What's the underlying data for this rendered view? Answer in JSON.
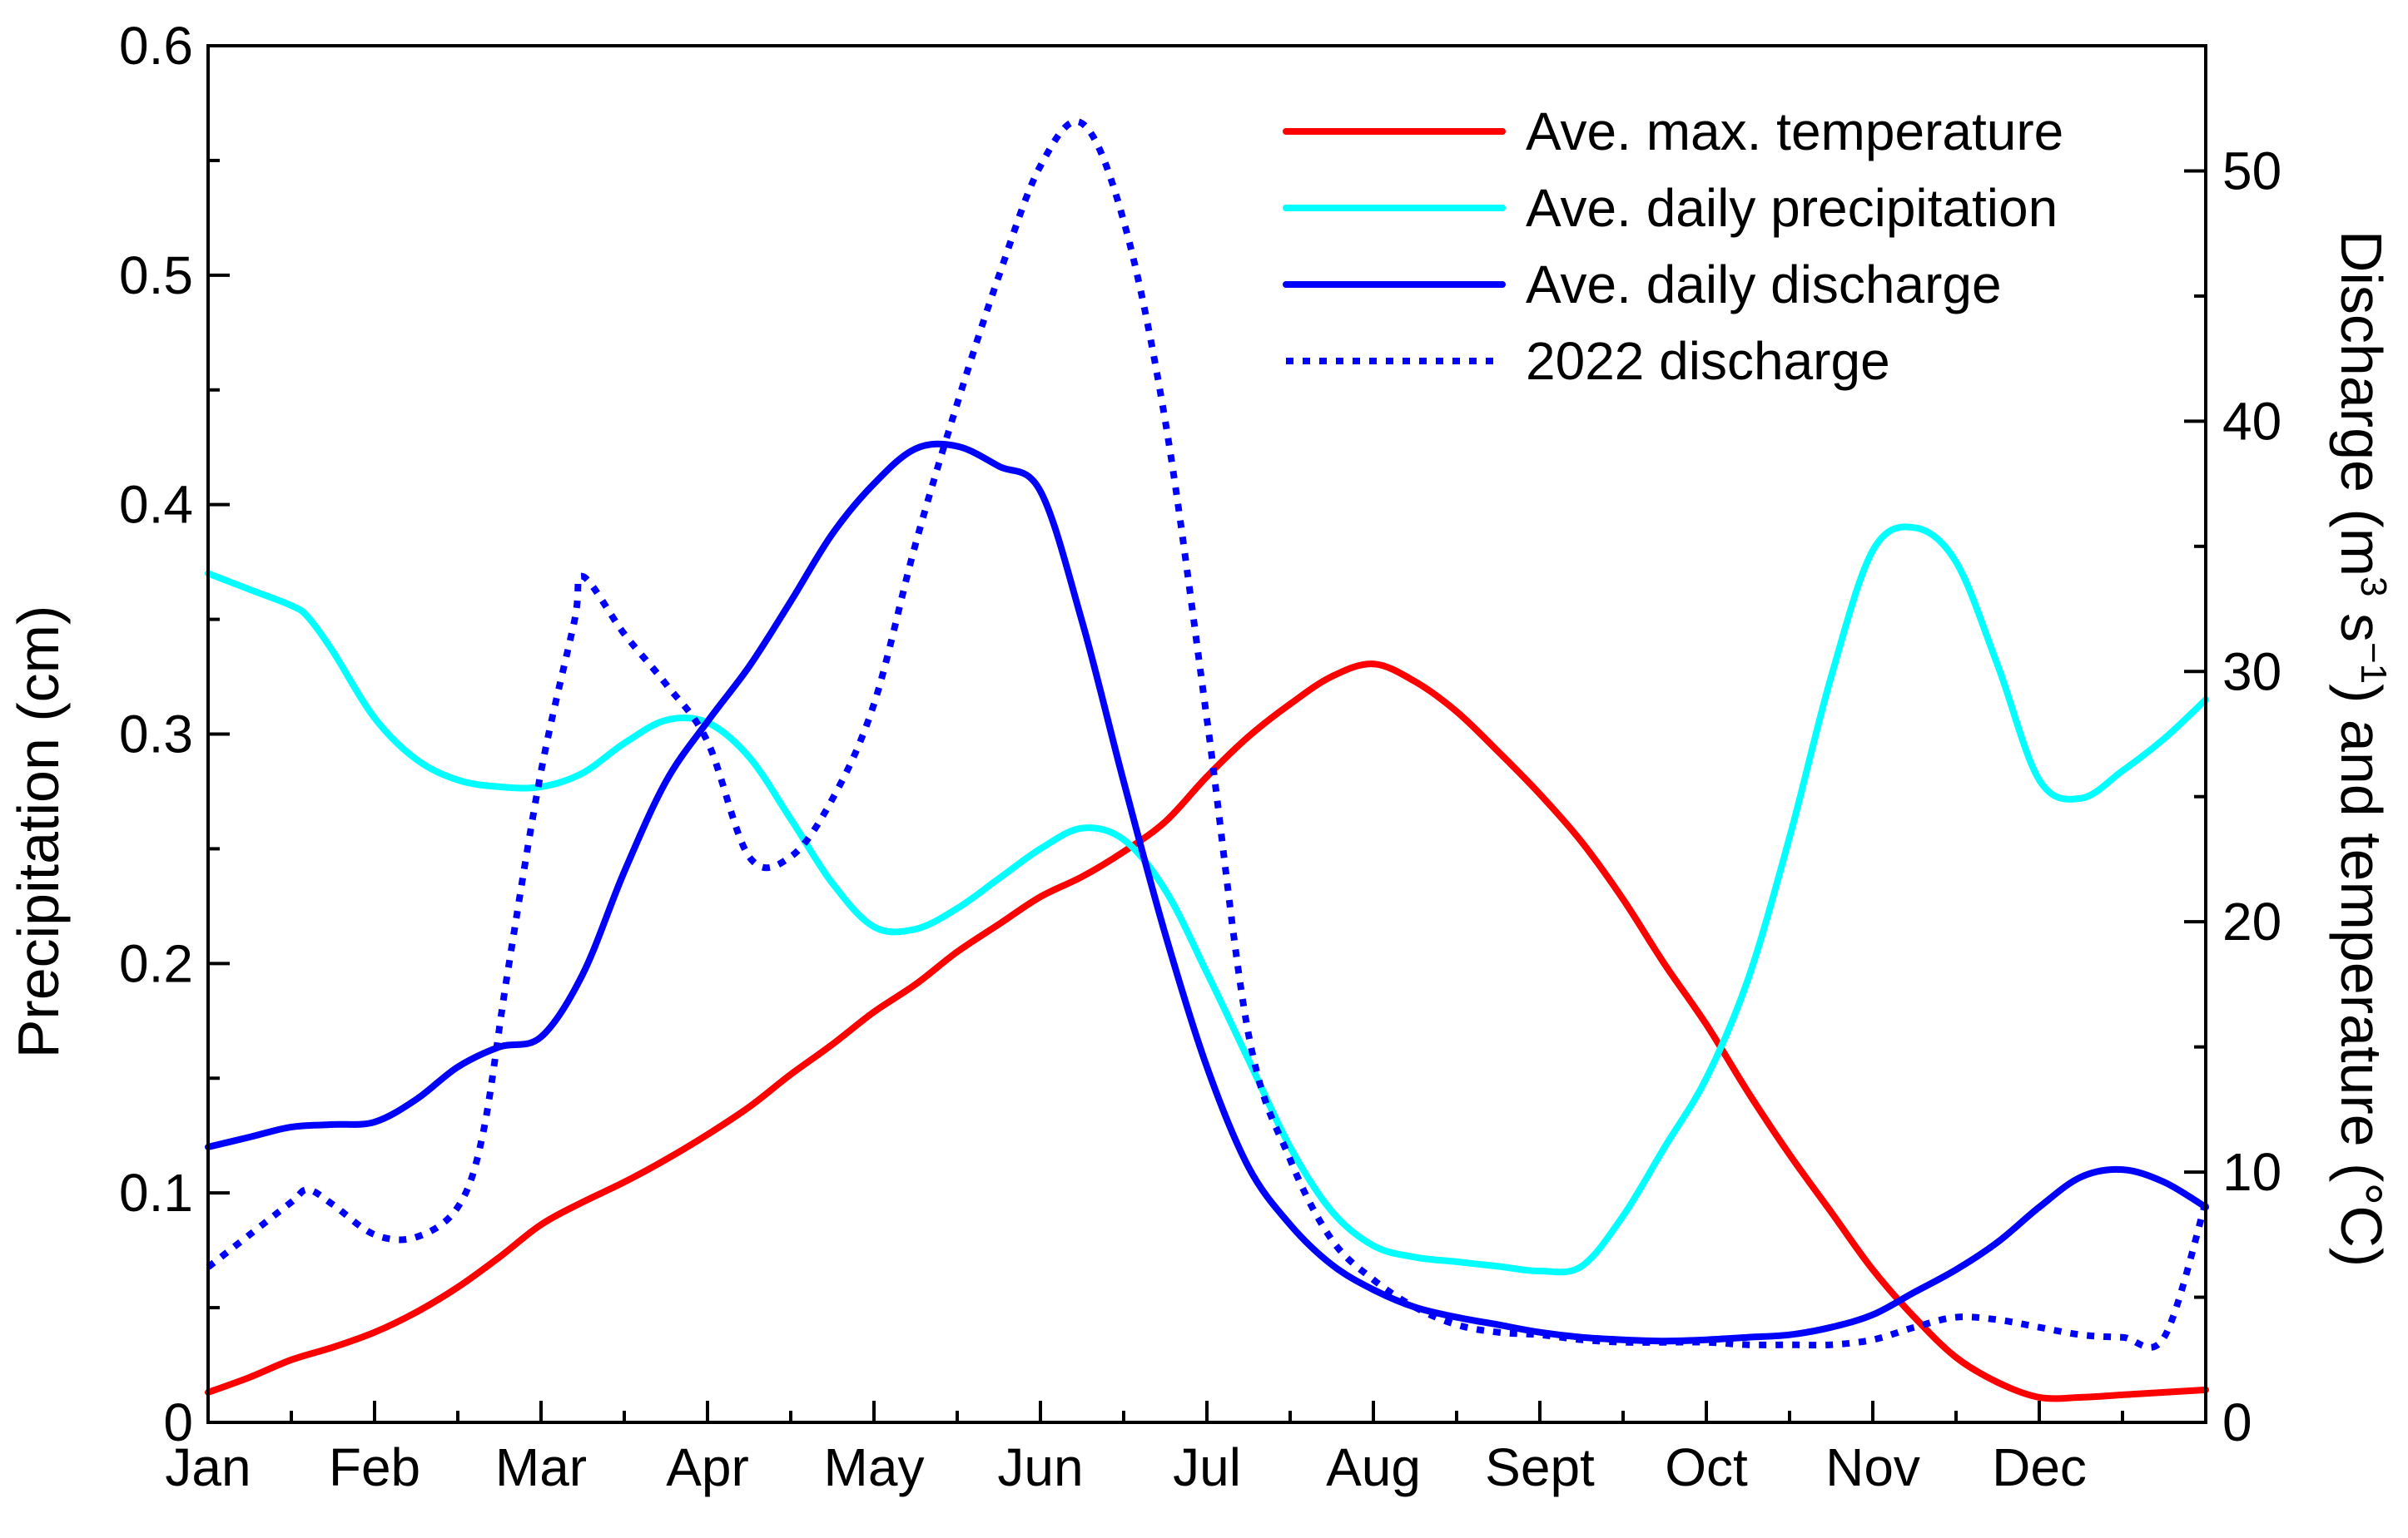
{
  "chart_data": {
    "type": "line",
    "title": "",
    "x_labels": [
      "Jan",
      "Feb",
      "Mar",
      "Apr",
      "May",
      "Jun",
      "Jul",
      "Aug",
      "Sept",
      "Oct",
      "Nov",
      "Dec"
    ],
    "ylabel_left": "Precipitation (cm)",
    "ylabel_right": {
      "part1": "Discharge (m",
      "sup1": "3",
      "part2": " s",
      "sup2": "−1",
      "part3": ") and temperature (°C)"
    },
    "ylim_left": [
      0,
      0.6
    ],
    "ylim_right": [
      0,
      55.0
    ],
    "xlim": [
      0,
      12
    ],
    "yticks_left": [
      "0",
      "0.1",
      "0.2",
      "0.3",
      "0.4",
      "0.5",
      "0.6"
    ],
    "yticks_right": [
      "0",
      "10",
      "20",
      "30",
      "40",
      "50"
    ],
    "legend_position": "top-right",
    "series": [
      {
        "name": "Ave. max. temperature",
        "axis": "right",
        "color": "#ff0000",
        "dash": "solid",
        "x": [
          0,
          0.25,
          0.5,
          0.75,
          1,
          1.25,
          1.5,
          1.75,
          2,
          2.25,
          2.5,
          2.75,
          3,
          3.25,
          3.5,
          3.75,
          4,
          4.25,
          4.5,
          4.75,
          5,
          5.25,
          5.5,
          5.75,
          6,
          6.25,
          6.5,
          6.75,
          7,
          7.25,
          7.5,
          7.75,
          8,
          8.25,
          8.5,
          8.75,
          9,
          9.25,
          9.5,
          9.75,
          10,
          10.25,
          10.5,
          10.75,
          11,
          11.25,
          11.5,
          11.75,
          12
        ],
        "y": [
          1.2,
          1.8,
          2.5,
          3.0,
          3.6,
          4.4,
          5.4,
          6.6,
          7.9,
          8.8,
          9.6,
          10.5,
          11.5,
          12.6,
          13.9,
          15.1,
          16.4,
          17.5,
          18.8,
          19.9,
          21.0,
          21.8,
          22.8,
          24.0,
          25.8,
          27.4,
          28.7,
          29.8,
          30.3,
          29.6,
          28.4,
          26.8,
          25.1,
          23.2,
          20.9,
          18.3,
          15.9,
          13.2,
          10.7,
          8.4,
          6.1,
          4.2,
          2.6,
          1.6,
          1.0,
          1.0,
          1.1,
          1.2,
          1.3
        ]
      },
      {
        "name": "Ave. daily precipitation",
        "axis": "left",
        "color": "#00ffff",
        "dash": "solid",
        "x": [
          0,
          0.25,
          0.5,
          0.6,
          0.75,
          1,
          1.25,
          1.5,
          1.75,
          2,
          2.25,
          2.5,
          2.75,
          3,
          3.25,
          3.5,
          3.75,
          4,
          4.25,
          4.5,
          4.75,
          5,
          5.25,
          5.5,
          5.75,
          6,
          6.25,
          6.5,
          6.75,
          7,
          7.25,
          7.5,
          7.75,
          8,
          8.25,
          8.5,
          8.75,
          9,
          9.25,
          9.5,
          9.75,
          10,
          10.25,
          10.5,
          10.75,
          11,
          11.25,
          11.5,
          11.75,
          12
        ],
        "y": [
          0.37,
          0.363,
          0.356,
          0.351,
          0.336,
          0.307,
          0.289,
          0.28,
          0.277,
          0.277,
          0.283,
          0.296,
          0.306,
          0.305,
          0.29,
          0.263,
          0.235,
          0.216,
          0.215,
          0.224,
          0.237,
          0.25,
          0.259,
          0.254,
          0.232,
          0.196,
          0.158,
          0.12,
          0.092,
          0.077,
          0.072,
          0.07,
          0.068,
          0.066,
          0.068,
          0.09,
          0.12,
          0.15,
          0.193,
          0.255,
          0.325,
          0.38,
          0.39,
          0.375,
          0.33,
          0.28,
          0.272,
          0.284,
          0.298,
          0.315
        ]
      },
      {
        "name": "Ave. daily discharge",
        "axis": "right",
        "color": "#0000ff",
        "dash": "solid",
        "x": [
          0,
          0.25,
          0.5,
          0.75,
          1,
          1.25,
          1.5,
          1.75,
          2,
          2.25,
          2.5,
          2.75,
          3,
          3.25,
          3.5,
          3.75,
          4,
          4.25,
          4.5,
          4.75,
          5,
          5.25,
          5.5,
          5.75,
          6,
          6.25,
          6.5,
          6.75,
          7,
          7.25,
          7.5,
          7.75,
          8,
          8.25,
          8.5,
          8.75,
          9,
          9.25,
          9.5,
          9.75,
          10,
          10.25,
          10.5,
          10.75,
          11,
          11.25,
          11.5,
          11.75,
          12
        ],
        "y": [
          11.0,
          11.4,
          11.8,
          11.9,
          12.0,
          12.9,
          14.2,
          15.0,
          15.4,
          17.9,
          22.0,
          25.6,
          28.0,
          30.2,
          32.8,
          35.5,
          37.5,
          38.9,
          39.0,
          38.2,
          37.2,
          32.0,
          25.6,
          19.5,
          14.2,
          10.2,
          7.9,
          6.3,
          5.3,
          4.6,
          4.2,
          3.9,
          3.6,
          3.4,
          3.3,
          3.25,
          3.3,
          3.4,
          3.5,
          3.8,
          4.3,
          5.2,
          6.1,
          7.2,
          8.6,
          9.8,
          10.1,
          9.6,
          8.6
        ]
      },
      {
        "name": "2022 discharge",
        "axis": "right",
        "color": "#0000ff",
        "dash": "dotted",
        "x": [
          0,
          0.25,
          0.5,
          0.6,
          0.75,
          1,
          1.25,
          1.5,
          1.65,
          1.8,
          2,
          2.2,
          2.25,
          2.5,
          2.75,
          3,
          3.25,
          3.5,
          3.75,
          4,
          4.25,
          4.5,
          4.75,
          5,
          5.25,
          5.5,
          5.75,
          6,
          6.25,
          6.5,
          6.75,
          7,
          7.25,
          7.5,
          7.75,
          8,
          8.25,
          8.5,
          8.75,
          9,
          9.25,
          9.5,
          9.75,
          10,
          10.25,
          10.5,
          10.75,
          11,
          11.25,
          11.5,
          11.75,
          12
        ],
        "y": [
          6.2,
          7.5,
          8.8,
          9.3,
          8.7,
          7.5,
          7.4,
          8.6,
          11.5,
          18.0,
          26.0,
          32.0,
          33.8,
          31.5,
          29.5,
          27.2,
          22.6,
          22.6,
          24.9,
          28.7,
          35.1,
          40.7,
          45.8,
          50.2,
          51.9,
          48.0,
          40.0,
          28.1,
          15.5,
          10.5,
          7.3,
          5.7,
          4.6,
          3.9,
          3.6,
          3.5,
          3.3,
          3.2,
          3.2,
          3.2,
          3.1,
          3.1,
          3.1,
          3.3,
          3.8,
          4.2,
          4.1,
          3.8,
          3.5,
          3.4,
          3.4,
          8.8
        ]
      }
    ]
  }
}
